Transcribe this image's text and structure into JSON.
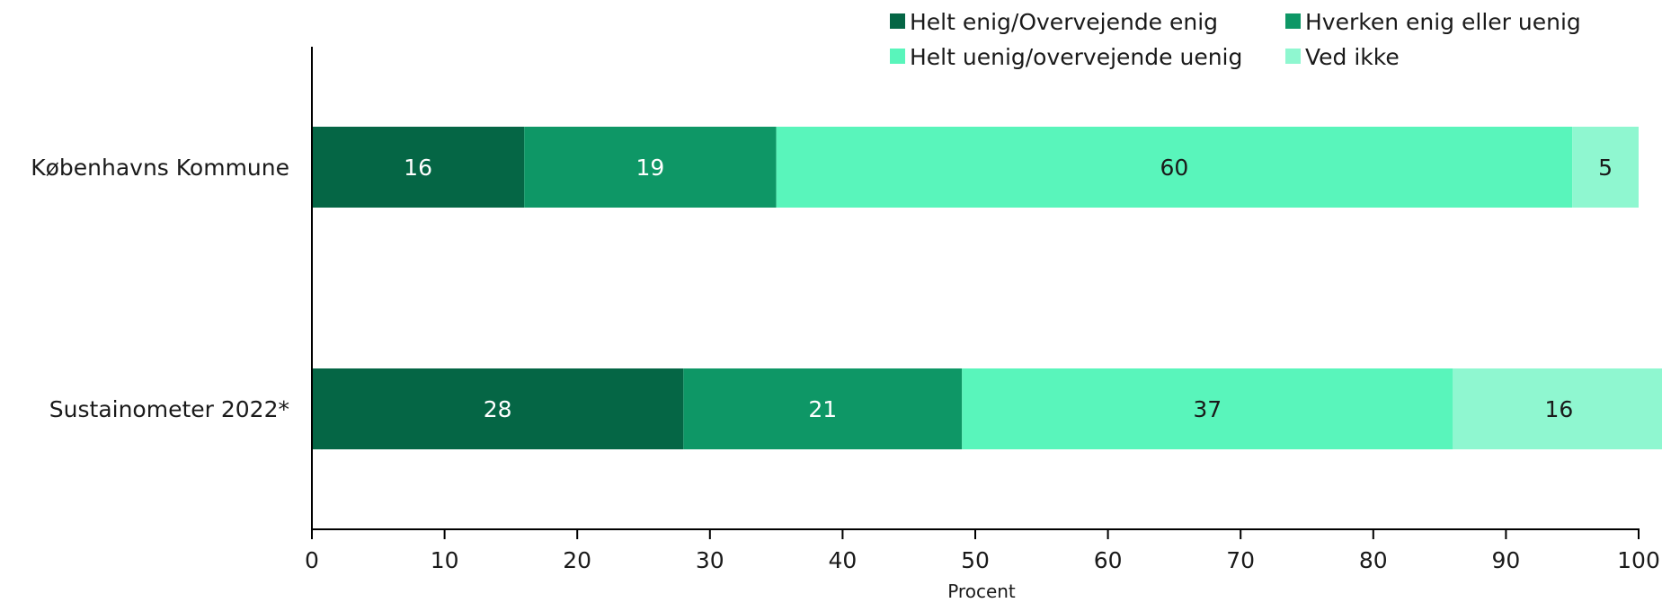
{
  "chart_data": {
    "type": "bar",
    "orientation": "horizontal",
    "stacked": true,
    "categories": [
      "Københavns Kommune",
      "Sustainometer 2022*"
    ],
    "series": [
      {
        "name": "Helt enig/Overvejende enig",
        "values": [
          16,
          28
        ],
        "color": "#056645",
        "label_color": "#ffffff"
      },
      {
        "name": "Hverken enig eller uenig",
        "values": [
          19,
          21
        ],
        "color": "#0e9766",
        "label_color": "#ffffff"
      },
      {
        "name": "Helt uenig/overvejende uenig",
        "values": [
          60,
          37
        ],
        "color": "#59f5bb",
        "label_color": "#1a1a1a"
      },
      {
        "name": "Ved ikke",
        "values": [
          5,
          16
        ],
        "color": "#8ff7d0",
        "label_color": "#1a1a1a"
      }
    ],
    "xlabel": "Procent",
    "ylabel": "",
    "xlim": [
      0,
      100
    ],
    "xticks": [
      0,
      10,
      20,
      30,
      40,
      50,
      60,
      70,
      80,
      90,
      100
    ],
    "legend_position": "top-right",
    "grid": false
  }
}
